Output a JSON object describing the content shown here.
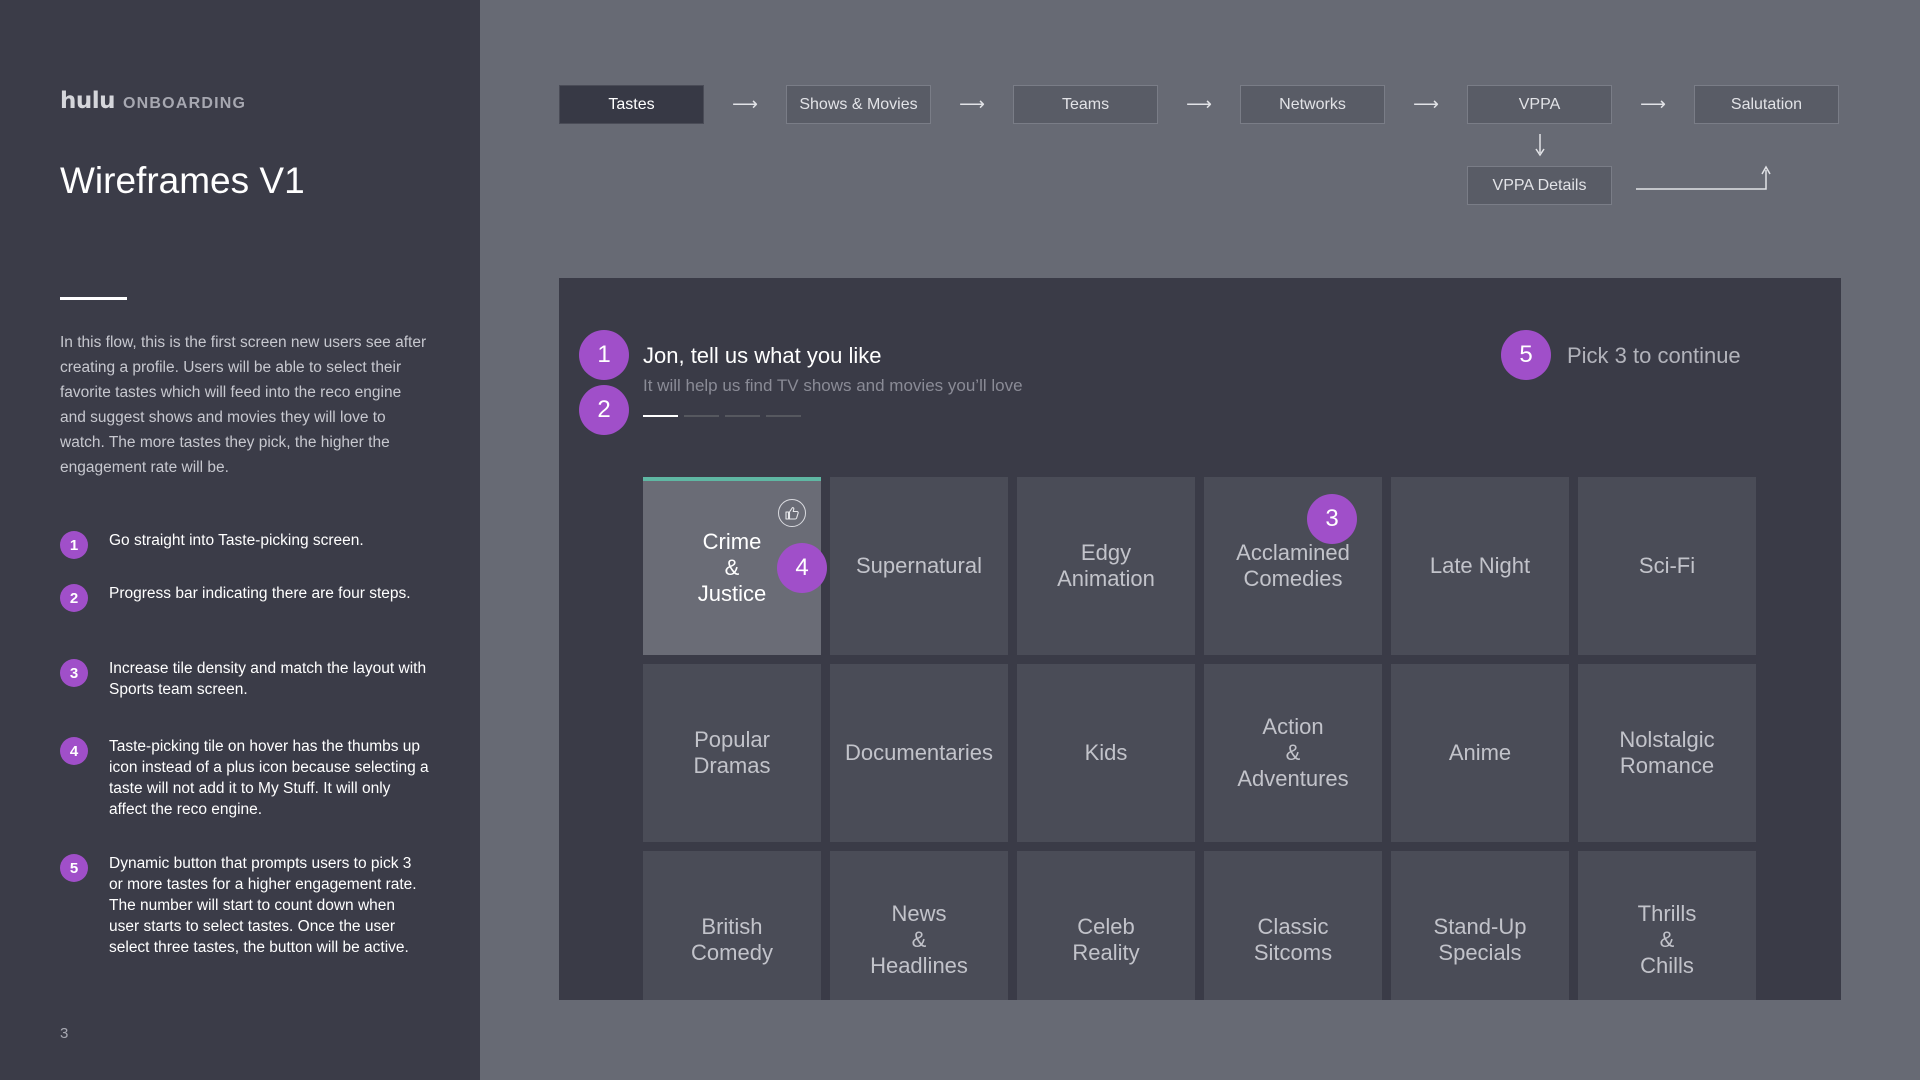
{
  "brand": {
    "logo": "hulu",
    "section": "ONBOARDING"
  },
  "title": "Wireframes V1",
  "intro": "In this flow, this is the first screen new users see after creating a profile. Users will be able to select their favorite tastes which will feed into the reco engine and suggest shows and movies they will love to watch. The more tastes they pick, the higher the engagement rate will be.",
  "notes": [
    {
      "num": "1",
      "text": "Go straight into Taste-picking screen."
    },
    {
      "num": "2",
      "text": "Progress bar indicating there are four steps."
    },
    {
      "num": "3",
      "text": "Increase tile density and match the layout with Sports team screen."
    },
    {
      "num": "4",
      "text": "Taste-picking tile on hover has the thumbs up icon instead of a plus icon because selecting a taste will not add it to My Stuff. It will only affect the reco engine."
    },
    {
      "num": "5",
      "text": "Dynamic button that prompts users to pick 3 or more tastes for a higher engagement rate. The number will start to count down when user starts to select tastes. Once the user select three tastes, the button will be active."
    }
  ],
  "page_number": "3",
  "flow": {
    "steps": [
      "Tastes",
      "Shows & Movies",
      "Teams",
      "Networks",
      "VPPA",
      "Salutation"
    ],
    "active_step": "Tastes",
    "branch_step": "VPPA Details"
  },
  "screen": {
    "greeting": "Jon, tell us what you like",
    "subtitle": "It will help us find TV shows and movies you’ll love",
    "progress": {
      "total_steps": 4,
      "current_step": 1
    },
    "pick_label": "Pick 3 to continue",
    "callouts": [
      "1",
      "2",
      "3",
      "4",
      "5"
    ],
    "tiles": [
      "Crime\n&\nJustice",
      "Supernatural",
      "Edgy\nAnimation",
      "Acclamined\nComedies",
      "Late Night",
      "Sci-Fi",
      "Popular\nDramas",
      "Documentaries",
      "Kids",
      "Action\n&\nAdventures",
      "Anime",
      "Nolstalgic\nRomance",
      "British\nComedy",
      "News\n&\nHeadlines",
      "Celeb\nReality",
      "Classic\nSitcoms",
      "Stand-Up\nSpecials",
      "Thrills\n&\nChills"
    ],
    "selected_tile": "Crime\n&\nJustice",
    "hover_icon": "thumbs-up-icon"
  },
  "colors": {
    "accent_purple": "#a04fc9",
    "selected_tile_bar": "#5fb7a3",
    "left_panel": "#3b3c48",
    "canvas": "#676a74",
    "screen": "#3a3b47",
    "tile": "#4a4c57"
  }
}
